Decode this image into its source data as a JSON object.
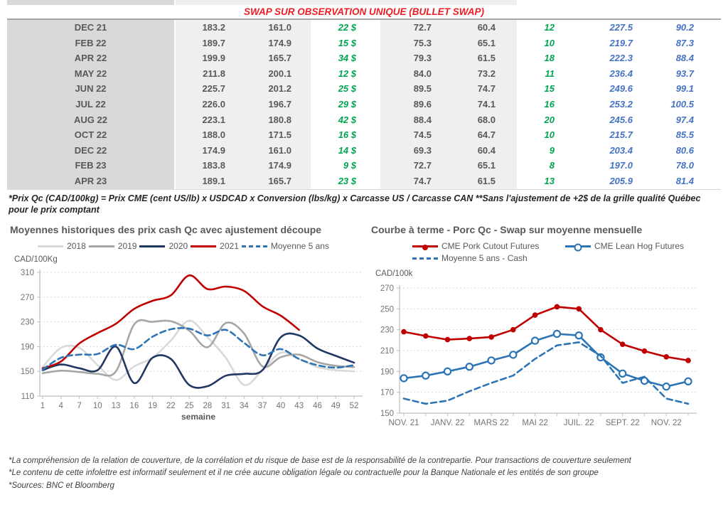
{
  "header": {
    "title": "SWAP SUR OBSERVATION UNIQUE (BULLET SWAP)",
    "title_color": "#ED1C24"
  },
  "palette": {
    "table_text": "#595959",
    "table_green": "#00A550",
    "table_blue": "#4472C4",
    "date_col_bg": "#D9D9D9",
    "num_col_bg": "#EFEFEF",
    "axis_line": "#BFBFBF",
    "gridline": "#D9D9D9",
    "tick_text": "#737373"
  },
  "chart_data": [
    {
      "type": "table",
      "title": "SWAP SUR OBSERVATION UNIQUE (BULLET SWAP)",
      "rows": [
        [
          "DEC 21",
          "183.2",
          "161.0",
          "22 $",
          "72.7",
          "60.4",
          "12",
          "227.5",
          "90.2"
        ],
        [
          "FEB 22",
          "189.7",
          "174.9",
          "15 $",
          "75.3",
          "65.1",
          "10",
          "219.7",
          "87.3"
        ],
        [
          "APR 22",
          "199.9",
          "165.7",
          "34 $",
          "79.3",
          "61.5",
          "18",
          "222.3",
          "88.4"
        ],
        [
          "MAY 22",
          "211.8",
          "200.1",
          "12 $",
          "84.0",
          "73.2",
          "11",
          "236.4",
          "93.7"
        ],
        [
          "JUN 22",
          "225.7",
          "201.2",
          "25 $",
          "89.5",
          "74.7",
          "15",
          "249.6",
          "99.1"
        ],
        [
          "JUL 22",
          "226.0",
          "196.7",
          "29 $",
          "89.6",
          "74.1",
          "16",
          "253.2",
          "100.5"
        ],
        [
          "AUG 22",
          "223.1",
          "180.8",
          "42 $",
          "88.4",
          "68.0",
          "20",
          "245.6",
          "97.4"
        ],
        [
          "OCT 22",
          "188.0",
          "171.5",
          "16 $",
          "74.5",
          "64.7",
          "10",
          "215.7",
          "85.5"
        ],
        [
          "DEC 22",
          "174.9",
          "161.0",
          "14 $",
          "69.3",
          "60.4",
          "9",
          "203.4",
          "80.6"
        ],
        [
          "FEB 23",
          "183.8",
          "174.9",
          "9 $",
          "72.7",
          "65.1",
          "8",
          "197.0",
          "78.0"
        ],
        [
          "APR 23",
          "189.1",
          "165.7",
          "23 $",
          "74.7",
          "61.5",
          "13",
          "205.9",
          "81.4"
        ]
      ],
      "footnote": "*Prix Qc (CAD/100kg) = Prix CME (cent US/lb) x USDCAD x Conversion (lbs/kg) x Carcasse US / Carcasse CAN **Sans l'ajustement de +2$ de la grille qualité Québec pour le prix comptant"
    },
    {
      "type": "line",
      "title": "Moyennes historiques des prix cash Qc avec ajustement découpe",
      "ylabel": "CAD/100Kg",
      "xlabel": "semaine",
      "x": [
        1,
        4,
        7,
        10,
        13,
        16,
        19,
        22,
        25,
        28,
        31,
        34,
        37,
        40,
        43,
        46,
        49,
        52
      ],
      "ylim": [
        110,
        310
      ],
      "yticks": [
        110,
        150,
        190,
        230,
        270,
        310
      ],
      "grid": true,
      "legend_position": "top-center",
      "smooth": true,
      "series": [
        {
          "name": "2018",
          "color": "#D9D9D9",
          "values": [
            157,
            188,
            188,
            160,
            136,
            158,
            172,
            200,
            232,
            205,
            172,
            128,
            152,
            180,
            170,
            157,
            152,
            150
          ]
        },
        {
          "name": "2019",
          "color": "#A6A6A6",
          "values": [
            147,
            151,
            149,
            146,
            150,
            226,
            230,
            231,
            216,
            189,
            228,
            211,
            158,
            173,
            177,
            165,
            159,
            157
          ]
        },
        {
          "name": "2020",
          "color": "#1F3864",
          "values": [
            152,
            161,
            155,
            152,
            190,
            131,
            172,
            170,
            128,
            126,
            143,
            146,
            152,
            205,
            208,
            187,
            175,
            164
          ]
        },
        {
          "name": "2021",
          "color": "#C00000",
          "values": [
            155,
            166,
            195,
            212,
            227,
            251,
            264,
            273,
            305,
            283,
            287,
            280,
            255,
            240,
            217,
            null,
            null,
            null
          ]
        },
        {
          "name": "Moyenne 5 ans",
          "color": "#2E75B6",
          "dash": true,
          "values": [
            153,
            172,
            177,
            178,
            193,
            186,
            206,
            218,
            219,
            208,
            217,
            196,
            176,
            186,
            170,
            160,
            156,
            160
          ]
        }
      ]
    },
    {
      "type": "line",
      "title": "Courbe à terme - Porc Qc - Swap sur moyenne mensuelle",
      "ylabel": "CAD/100k",
      "xlabel": "",
      "x": [
        1,
        2,
        3,
        4,
        5,
        6,
        7,
        8,
        9,
        10,
        11,
        12,
        13,
        14
      ],
      "x_tick_labels": [
        "NOV. 21",
        "JANV. 22",
        "MARS 22",
        "MAI 22",
        "JUIL. 22",
        "SEPT. 22",
        "NOV. 22"
      ],
      "x_label_every": 2,
      "ylim": [
        150,
        270
      ],
      "yticks": [
        150,
        170,
        190,
        210,
        230,
        250,
        270
      ],
      "grid": true,
      "legend_position": "top-left",
      "smooth": false,
      "series": [
        {
          "name": "CME Pork Cutout Futures",
          "color": "#C00000",
          "marker": "filled-circle",
          "values": [
            228,
            224,
            220.5,
            221.5,
            223,
            230,
            244,
            252,
            250,
            230,
            216,
            209.5,
            204,
            200.5
          ]
        },
        {
          "name": "CME Lean Hog Futures",
          "color": "#2E75B6",
          "marker": "open-circle",
          "values": [
            183.5,
            186,
            190,
            194.5,
            200.5,
            206,
            219.5,
            226,
            224.5,
            203.5,
            188,
            181,
            175.5,
            180.5
          ]
        },
        {
          "name": "Moyenne 5 ans - Cash",
          "color": "#2E75B6",
          "dash": true,
          "values": [
            164,
            159,
            162,
            171,
            179,
            186,
            202,
            215,
            218,
            205,
            179,
            185,
            164,
            159
          ]
        }
      ]
    }
  ],
  "footer": {
    "lines": [
      "*La compréhension de la relation de couverture, de la corrélation et du risque de base est de la responsabilité de la contrepartie. Pour transactions de couverture seulement",
      "*Le contenu de cette infolettre est informatif seulement et il ne crée aucune obligation légale ou contractuelle pour la Banque Nationale et les entités de son groupe",
      "*Sources: BNC et Bloomberg"
    ]
  }
}
